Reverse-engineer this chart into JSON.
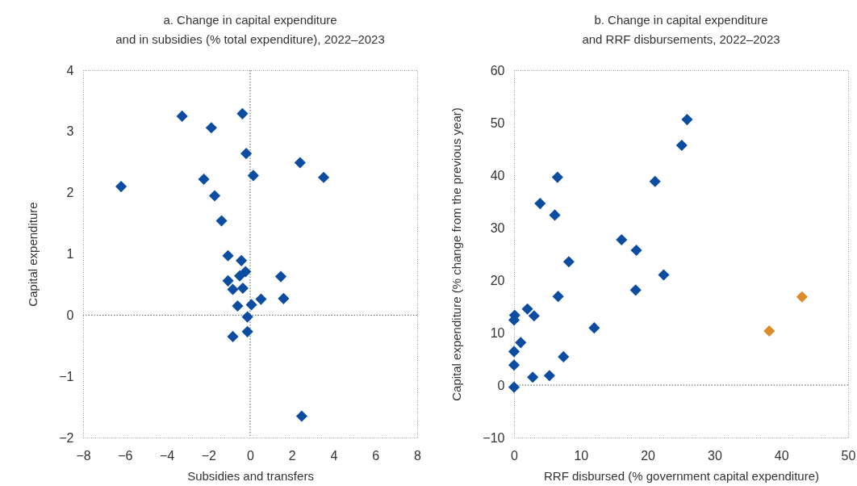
{
  "chart_data": [
    {
      "type": "scatter",
      "title": "a. Change in capital expenditure\nand in subsidies (% total expenditure), 2022–2023",
      "xlabel": "Subsidies and transfers",
      "ylabel": "Capital expenditure",
      "xlim": [
        -8,
        8
      ],
      "ylim": [
        -2,
        4
      ],
      "xticks": [
        -8,
        -6,
        -4,
        -2,
        0,
        2,
        4,
        6,
        8
      ],
      "yticks": [
        -2,
        -1,
        0,
        1,
        2,
        3,
        4
      ],
      "marker": "diamond",
      "ref_lines": [
        {
          "axis": "x",
          "value": 0,
          "color": "#555555",
          "line_style": "dotted"
        },
        {
          "axis": "y",
          "value": 0,
          "color": "#555555",
          "line_style": "dotted"
        }
      ],
      "series": [
        {
          "color": "#0c4da2",
          "x": [
            -3.26,
            -0.37,
            -1.86,
            -0.19,
            2.39,
            3.52,
            0.15,
            -2.22,
            -6.18,
            -1.7,
            -1.37,
            -1.06,
            -0.42,
            -0.22,
            -0.5,
            1.47,
            -1.06,
            -0.83,
            -0.35,
            1.6,
            0.52,
            0.06,
            -0.6,
            -0.13,
            -0.13,
            -0.83,
            2.47
          ],
          "values": [
            3.25,
            3.29,
            3.06,
            2.64,
            2.49,
            2.25,
            2.28,
            2.22,
            2.1,
            1.95,
            1.54,
            0.97,
            0.89,
            0.71,
            0.64,
            0.63,
            0.56,
            0.42,
            0.44,
            0.27,
            0.26,
            0.17,
            0.15,
            -0.03,
            -0.27,
            -0.35,
            -1.65
          ]
        }
      ]
    },
    {
      "type": "scatter",
      "title": "b. Change in capital expenditure\nand RRF disbursements, 2022–2023",
      "xlabel": "RRF disbursed (% government capital expenditure)",
      "ylabel": "Capital expenditure (% change from the previous year)",
      "xlim": [
        0,
        50
      ],
      "ylim": [
        -10,
        60
      ],
      "xticks": [
        0,
        10,
        20,
        30,
        40,
        50
      ],
      "yticks": [
        -10,
        0,
        10,
        20,
        30,
        40,
        50,
        60
      ],
      "marker": "diamond",
      "ref_lines": [
        {
          "axis": "y",
          "value": 0,
          "color": "#555555",
          "line_style": "dotted"
        }
      ],
      "series": [
        {
          "color": "#0c4da2",
          "x": [
            25.9,
            25.1,
            21.1,
            6.5,
            3.9,
            6.1,
            16.1,
            18.3,
            8.2,
            22.4,
            18.2,
            6.6,
            2.0,
            3.0,
            0.1,
            0.0,
            12.0,
            1.0,
            0.0,
            7.4,
            0.0,
            2.8,
            5.3,
            0.0
          ],
          "values": [
            50.6,
            45.7,
            38.8,
            39.6,
            34.6,
            32.4,
            27.7,
            25.7,
            23.5,
            21.0,
            18.1,
            16.9,
            14.5,
            13.2,
            13.3,
            12.4,
            10.9,
            8.1,
            6.4,
            5.4,
            3.8,
            1.5,
            1.8,
            -0.4
          ]
        },
        {
          "color": "#dc8a2a",
          "x": [
            43.1,
            38.2
          ],
          "values": [
            16.8,
            10.3
          ]
        }
      ]
    }
  ]
}
